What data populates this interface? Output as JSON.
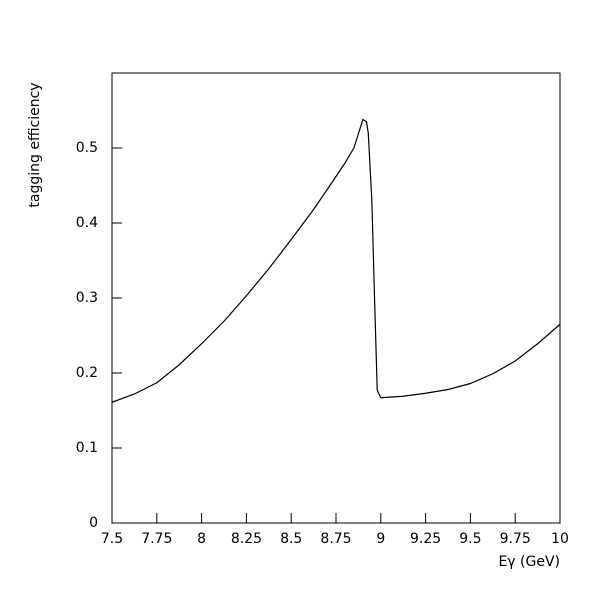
{
  "chart_data": {
    "type": "line",
    "y_label": "tagging efficiency",
    "x_label": "Eγ (GeV)",
    "x": [
      7.5,
      7.625,
      7.75,
      7.875,
      8.0,
      8.125,
      8.25,
      8.375,
      8.5,
      8.625,
      8.75,
      8.8,
      8.85,
      8.9,
      8.92,
      8.93,
      8.95,
      8.965,
      8.98,
      9.0,
      9.125,
      9.25,
      9.375,
      9.5,
      9.625,
      9.75,
      9.875,
      10.0
    ],
    "series": [
      {
        "color": "#000000",
        "values": [
          0.161,
          0.172,
          0.187,
          0.211,
          0.239,
          0.269,
          0.303,
          0.339,
          0.378,
          0.418,
          0.462,
          0.48,
          0.5,
          0.538,
          0.535,
          0.52,
          0.43,
          0.3,
          0.177,
          0.167,
          0.169,
          0.173,
          0.178,
          0.186,
          0.199,
          0.216,
          0.239,
          0.265
        ]
      }
    ],
    "xlim": [
      7.5,
      10.0
    ],
    "ylim": [
      0,
      0.6
    ],
    "xticks": [
      7.5,
      7.75,
      8,
      8.25,
      8.5,
      8.75,
      9,
      9.25,
      9.5,
      9.75,
      10
    ],
    "yticks": [
      0,
      0.1,
      0.2,
      0.3,
      0.4,
      0.5
    ]
  }
}
